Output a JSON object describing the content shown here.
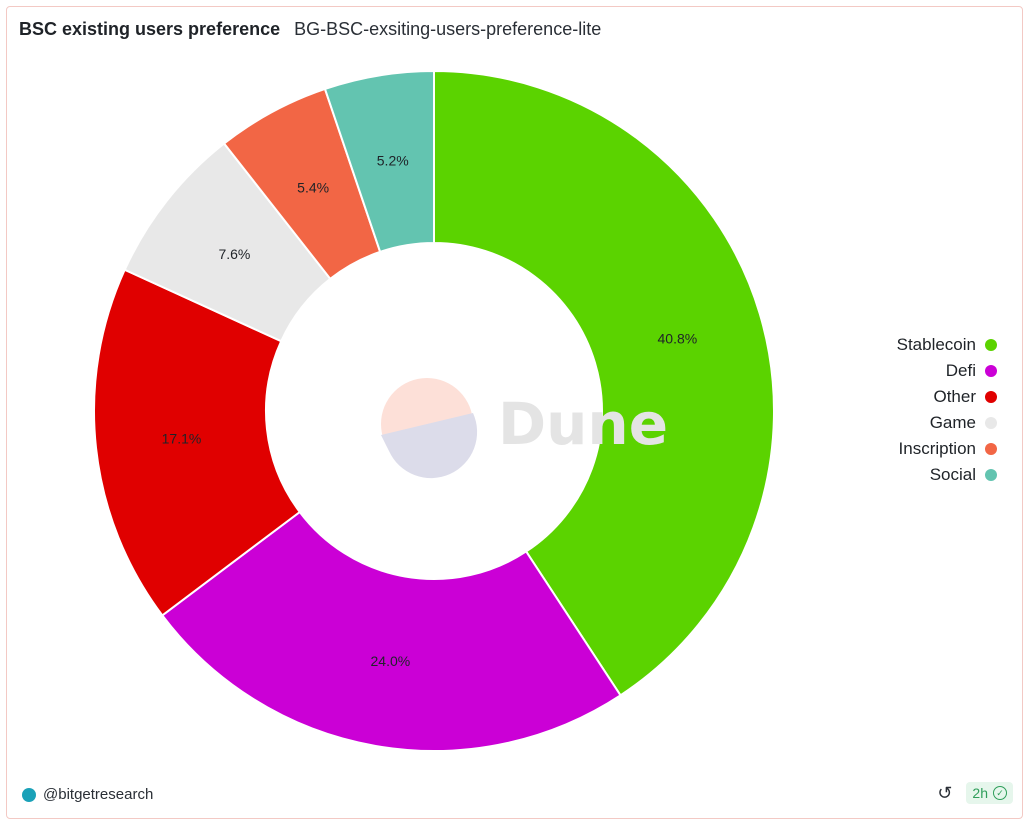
{
  "header": {
    "title": "BSC existing users preference",
    "subtitle": "BG-BSC-exsiting-users-preference-lite"
  },
  "watermark": {
    "text": "Dune"
  },
  "chart_data": {
    "type": "pie",
    "donut": true,
    "title": "BSC existing users preference",
    "subtitle": "BG-BSC-exsiting-users-preference-lite",
    "legend_position": "right",
    "slices": [
      {
        "label": "Stablecoin",
        "value": 40.8,
        "display": "40.8%",
        "color": "#5bd300"
      },
      {
        "label": "Defi",
        "value": 24.0,
        "display": "24.0%",
        "color": "#cb00d6"
      },
      {
        "label": "Other",
        "value": 17.1,
        "display": "17.1%",
        "color": "#e00000"
      },
      {
        "label": "Game",
        "value": 7.6,
        "display": "7.6%",
        "color": "#e8e8e8"
      },
      {
        "label": "Inscription",
        "value": 5.4,
        "display": "5.4%",
        "color": "#f26645"
      },
      {
        "label": "Social",
        "value": 5.2,
        "display": "5.2%",
        "color": "#63c4b0"
      }
    ]
  },
  "footer": {
    "author": "@bitgetresearch",
    "author_icon": "bitget-avatar-icon",
    "refresh_icon": "refresh-icon",
    "age": "2h",
    "age_icon": "check-circle-icon",
    "age_badge_color": "#e6f6ec"
  }
}
